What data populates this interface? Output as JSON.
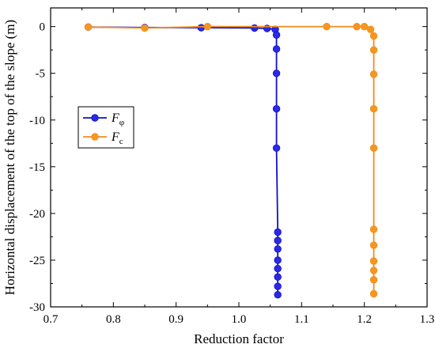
{
  "chart_data": {
    "type": "line",
    "xlabel": "Reduction factor",
    "ylabel": "Horizontal displacement of the top of the slope (m)",
    "xlim": [
      0.7,
      1.3
    ],
    "ylim": [
      -30,
      2
    ],
    "xticks": [
      0.7,
      0.8,
      0.9,
      1.0,
      1.1,
      1.2,
      1.3
    ],
    "xtick_labels": [
      "0.7",
      "0.8",
      "0.9",
      "1.0",
      "1.1",
      "1.2",
      "1.3"
    ],
    "yticks": [
      0,
      -5,
      -10,
      -15,
      -20,
      -25,
      -30
    ],
    "ytick_labels": [
      "0",
      "-5",
      "-10",
      "-15",
      "-20",
      "-25",
      "-30"
    ],
    "grid": false,
    "legend_position": "left",
    "series": [
      {
        "name": "F",
        "subscript": "φ",
        "color": "#1010c8",
        "marker_color": "#2a2ae6",
        "points": [
          [
            0.76,
            -0.05
          ],
          [
            0.85,
            -0.1
          ],
          [
            0.94,
            -0.12
          ],
          [
            1.025,
            -0.15
          ],
          [
            1.045,
            -0.2
          ],
          [
            1.058,
            -0.3
          ],
          [
            1.06,
            -0.9
          ],
          [
            1.06,
            -2.4
          ],
          [
            1.06,
            -5.0
          ],
          [
            1.06,
            -8.8
          ],
          [
            1.06,
            -13.0
          ],
          [
            1.062,
            -22.0
          ],
          [
            1.062,
            -22.9
          ],
          [
            1.062,
            -23.8
          ],
          [
            1.062,
            -25.0
          ],
          [
            1.062,
            -25.9
          ],
          [
            1.062,
            -26.8
          ],
          [
            1.062,
            -27.8
          ],
          [
            1.062,
            -28.7
          ]
        ]
      },
      {
        "name": "F",
        "subscript": "c",
        "color": "#f28c1e",
        "marker_color": "#f5961f",
        "points": [
          [
            0.76,
            -0.05
          ],
          [
            0.85,
            -0.15
          ],
          [
            0.95,
            0.0
          ],
          [
            1.14,
            0.0
          ],
          [
            1.188,
            0.0
          ],
          [
            1.2,
            0.0
          ],
          [
            1.21,
            -0.3
          ],
          [
            1.215,
            -1.0
          ],
          [
            1.215,
            -2.5
          ],
          [
            1.215,
            -5.1
          ],
          [
            1.215,
            -8.8
          ],
          [
            1.215,
            -13.0
          ],
          [
            1.215,
            -21.7
          ],
          [
            1.215,
            -23.4
          ],
          [
            1.215,
            -25.1
          ],
          [
            1.215,
            -26.1
          ],
          [
            1.215,
            -27.1
          ],
          [
            1.215,
            -28.6
          ]
        ]
      }
    ]
  }
}
